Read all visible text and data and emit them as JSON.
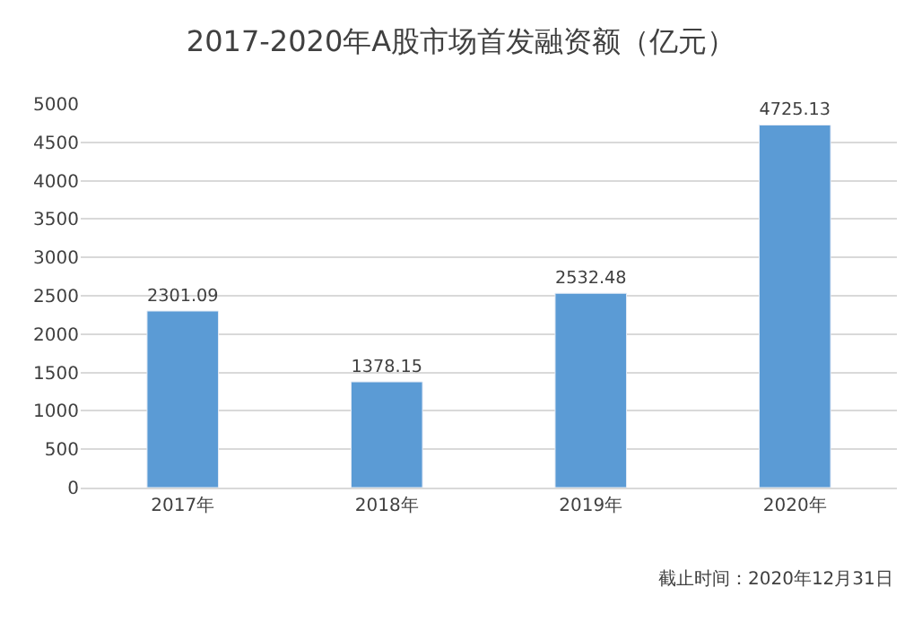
{
  "chart_data": {
    "type": "bar",
    "title": "2017-2020年A股市场首发融资额（亿元）",
    "categories": [
      "2017年",
      "2018年",
      "2019年",
      "2020年"
    ],
    "values": [
      2301.09,
      1378.15,
      2532.48,
      4725.13
    ],
    "color": "#5b9bd5",
    "ylim": [
      0,
      5000
    ],
    "yticks": [
      0,
      500,
      1000,
      1500,
      2000,
      2500,
      3000,
      3500,
      4000,
      4500,
      5000
    ],
    "grid": "y",
    "data_labels": true,
    "legend": false,
    "annotations": [
      "截止时间：2020年12月31日"
    ]
  }
}
